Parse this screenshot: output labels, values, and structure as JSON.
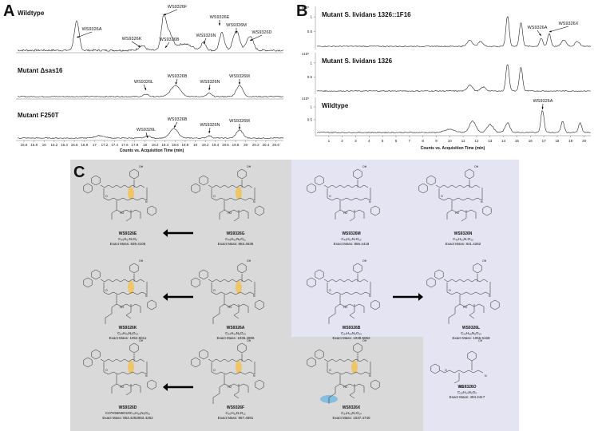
{
  "panel_a": {
    "label": "A",
    "traces": [
      {
        "title": "Wildtype",
        "peaks": [
          "WS9326A",
          "WS9326K",
          "WS9326F",
          "WS9326E",
          "WS9326B",
          "WS9326N",
          "WS9326M",
          "WS9326D"
        ]
      },
      {
        "title": "Mutant Δsas16",
        "peaks": [
          "WS9326L",
          "WS9326B",
          "WS9326N",
          "WS9326M"
        ]
      },
      {
        "title": "Mutant F250T",
        "peaks": [
          "WS9326L",
          "WS9326B",
          "WS9326N",
          "WS9326M"
        ]
      }
    ],
    "x_ticks": [
      15.6,
      15.8,
      16,
      16.2,
      16.4,
      16.6,
      16.8,
      17,
      17.2,
      17.4,
      17.6,
      17.8,
      18,
      18.2,
      18.4,
      18.6,
      18.8,
      19,
      19.2,
      19.4,
      19.6,
      19.8,
      20,
      20.2,
      20.4,
      20.6
    ],
    "x_label": "Counts vs. Acquisition Time (min)"
  },
  "panel_b": {
    "label": "B",
    "traces": [
      {
        "title": "Mutant S. lividans 1326::1F16",
        "scale": "x10⁵",
        "yticks": [
          0.5,
          1
        ],
        "peaks": [
          "WS9326A",
          "WS9326X"
        ]
      },
      {
        "title": "Mutant S. lividans 1326",
        "scale": "x10⁵",
        "yticks": [
          0.5,
          1
        ],
        "peaks": []
      },
      {
        "title": "Wildtype",
        "scale": "x10⁵",
        "yticks": [
          0.5,
          1
        ],
        "peaks": [
          "WS9326A"
        ]
      }
    ],
    "x_ticks": [
      1,
      2,
      3,
      4,
      5,
      6,
      7,
      8,
      9,
      10,
      11,
      12,
      13,
      14,
      15,
      16,
      17,
      18,
      19,
      20
    ],
    "x_label": "Counts vs. Acquisition Time (min)"
  },
  "panel_c": {
    "label": "C",
    "compounds": [
      {
        "name": "WS9326E",
        "formula": "C₄₅H₅₇N₇O₉",
        "mass": "Exact Mass: 839.4105"
      },
      {
        "name": "WS9326G",
        "formula": "C₄₆H₆₀N₈O₁₁",
        "mass": "Exact Mass: 853.4535"
      },
      {
        "name": "WS9326M",
        "formula": "C₄₆H₅₇N₇O₁₀",
        "mass": "Exact Mass: 855.4418"
      },
      {
        "name": "WS9326N",
        "formula": "C₄₅H₅₅N₇O₁₀",
        "mass": "Exact Mass: 841.4262"
      },
      {
        "name": "WS9326K",
        "formula": "C₅₄H₆₆N₈O₁₄",
        "mass": "Exact Mass: 1054.5011"
      },
      {
        "name": "WS9326A",
        "formula": "C₅₄H₆₄N₈O₁₃",
        "mass": "Exact Mass: 1036.4906"
      },
      {
        "name": "WS9326B",
        "formula": "C₅₄H₆₆N₈O₁₃",
        "mass": "Exact Mass: 1038.5062"
      },
      {
        "name": "WS9326L",
        "formula": "C₅₄H₆₈N₈O₁₄",
        "mass": "Exact Mass: 1056.5168"
      },
      {
        "name": "WS9326D",
        "formula": "C47H56N6O10C₄₇H₅₈N₆O₁₀",
        "mass": "Exact Mass: 853.4282853.4262"
      },
      {
        "name": "WS9326F",
        "formula": "C₅₀H₆₁N₇O₁₂",
        "mass": "Exact Mass: 967.4691"
      },
      {
        "name": "WS9326X",
        "formula": "C₅₄H₆₃N₇O₁₄",
        "mass": "Exact Mass: 1037.4740"
      },
      {
        "name": "WS9326O",
        "formula": "C₂₉H₃₄N₂O₅",
        "mass": "Exact Mass: 494.2417"
      }
    ]
  }
}
